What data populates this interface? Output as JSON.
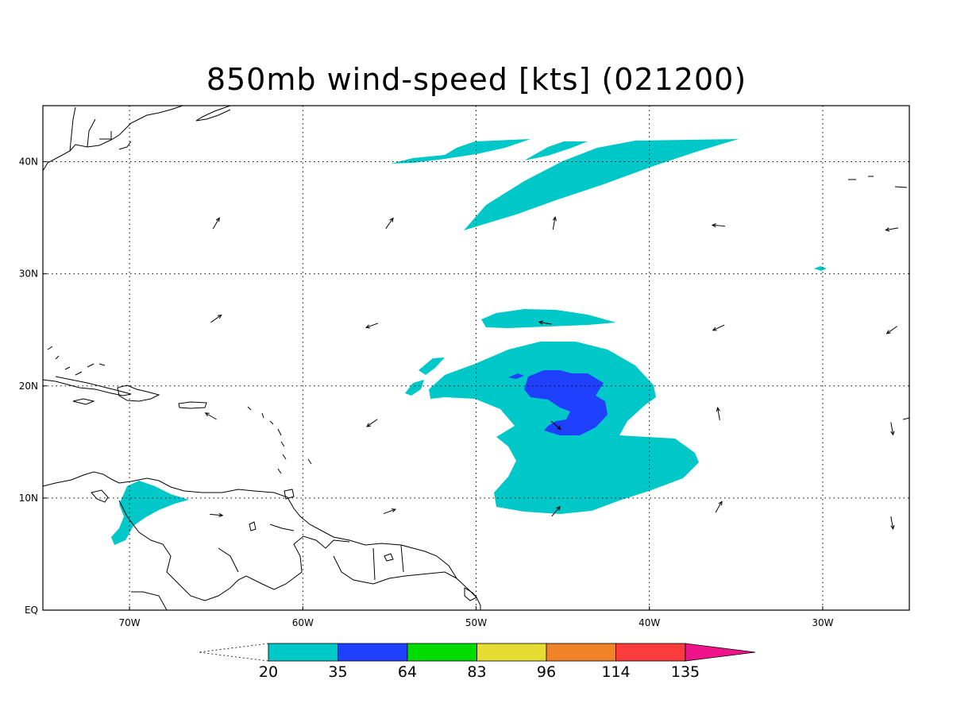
{
  "title": "850mb wind-speed [kts] (021200)",
  "map": {
    "lon_range": [
      -75,
      -25
    ],
    "lat_range": [
      0,
      45
    ],
    "lon_ticks": [
      {
        "value": -70,
        "label": "70W"
      },
      {
        "value": -60,
        "label": "60W"
      },
      {
        "value": -50,
        "label": "50W"
      },
      {
        "value": -40,
        "label": "40W"
      },
      {
        "value": -30,
        "label": "30W"
      }
    ],
    "lat_ticks": [
      {
        "value": 0,
        "label": "EQ"
      },
      {
        "value": 10,
        "label": "10N"
      },
      {
        "value": 20,
        "label": "20N"
      },
      {
        "value": 30,
        "label": "30N"
      },
      {
        "value": 40,
        "label": "40N"
      }
    ],
    "grid": "dotted"
  },
  "colorbar": {
    "levels": [
      "20",
      "35",
      "64",
      "83",
      "96",
      "114",
      "135"
    ],
    "colors": [
      "#00c8c8",
      "#2040ff",
      "#00dc00",
      "#e6dc32",
      "#f08228",
      "#fa3c3c",
      "#f0148c"
    ]
  },
  "wind_vectors": [
    {
      "lon": -65,
      "lat": 34.5,
      "dir": 60
    },
    {
      "lon": -55,
      "lat": 34.5,
      "dir": 55
    },
    {
      "lon": -45.5,
      "lat": 34.5,
      "dir": 80
    },
    {
      "lon": -36,
      "lat": 34.3,
      "dir": 175
    },
    {
      "lon": -26,
      "lat": 34.0,
      "dir": 190
    },
    {
      "lon": -65,
      "lat": 26,
      "dir": 35
    },
    {
      "lon": -56,
      "lat": 25.4,
      "dir": 200
    },
    {
      "lon": -46,
      "lat": 25.6,
      "dir": 170
    },
    {
      "lon": -36,
      "lat": 25.2,
      "dir": 205
    },
    {
      "lon": -26,
      "lat": 25.0,
      "dir": 215
    },
    {
      "lon": -65.3,
      "lat": 17.3,
      "dir": 150
    },
    {
      "lon": -56,
      "lat": 16.7,
      "dir": 215
    },
    {
      "lon": -45.4,
      "lat": 16.5,
      "dir": 320
    },
    {
      "lon": -36,
      "lat": 17.5,
      "dir": 100
    },
    {
      "lon": -26,
      "lat": 16.2,
      "dir": 280
    },
    {
      "lon": -65,
      "lat": 8.5,
      "dir": 355
    },
    {
      "lon": -55,
      "lat": 8.8,
      "dir": 20
    },
    {
      "lon": -45.4,
      "lat": 8.8,
      "dir": 50
    },
    {
      "lon": -36,
      "lat": 9.2,
      "dir": 60
    },
    {
      "lon": -26,
      "lat": 7.8,
      "dir": 280
    }
  ]
}
